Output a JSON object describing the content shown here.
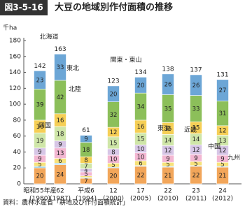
{
  "chart_data": {
    "type": "bar",
    "stacked": true,
    "figure_label": "図3-5-16",
    "title": "大豆の地域別作付面積の推移",
    "y_unit": "千ha",
    "source": "資料：農林水産省「耕地及び作付面積統計」",
    "categories": [
      "昭和55年産",
      "62",
      "平成6",
      "12",
      "17",
      "22",
      "23",
      "24"
    ],
    "years": [
      "(1980)",
      "(1987)",
      "(1994)",
      "(2000)",
      "(2005)",
      "(2010)",
      "(2011)",
      "(2012)"
    ],
    "totals": [
      142,
      163,
      61,
      123,
      134,
      138,
      137,
      131
    ],
    "ylim": [
      0,
      180
    ],
    "yticks": [
      0,
      20,
      40,
      60,
      80,
      100,
      120,
      140,
      160,
      180
    ],
    "series": [
      {
        "name": "九州",
        "color": "#f2a65a",
        "values": [
          20,
          24,
          7,
          20,
          22,
          21,
          22,
          21
        ]
      },
      {
        "name": "四国",
        "color": "#9fd3e8",
        "values": [
          2,
          2,
          1,
          1,
          1,
          1,
          1,
          1
        ]
      },
      {
        "name": "中国",
        "color": "#f7e27a",
        "values": [
          5,
          6,
          2,
          5,
          6,
          5,
          5,
          5
        ]
      },
      {
        "name": "近畿",
        "color": "#f3b7d2",
        "values": [
          9,
          13,
          5,
          10,
          10,
          9,
          9,
          9
        ]
      },
      {
        "name": "東海",
        "color": "#d7c6e6",
        "values": [
          9,
          9,
          4,
          8,
          10,
          12,
          12,
          12
        ]
      },
      {
        "name": "関東・東山",
        "color": "#cfe6a8",
        "values": [
          19,
          18,
          7,
          15,
          15,
          14,
          14,
          13
        ]
      },
      {
        "name": "北陸",
        "color": "#f6cf56",
        "values": [
          16,
          16,
          8,
          12,
          16,
          15,
          15,
          12
        ]
      },
      {
        "name": "東北",
        "color": "#8cbf5a",
        "values": [
          39,
          42,
          18,
          32,
          34,
          35,
          33,
          31
        ]
      },
      {
        "name": "北海道",
        "color": "#6ca6d6",
        "values": [
          23,
          33,
          9,
          20,
          20,
          26,
          26,
          27
        ]
      }
    ]
  }
}
